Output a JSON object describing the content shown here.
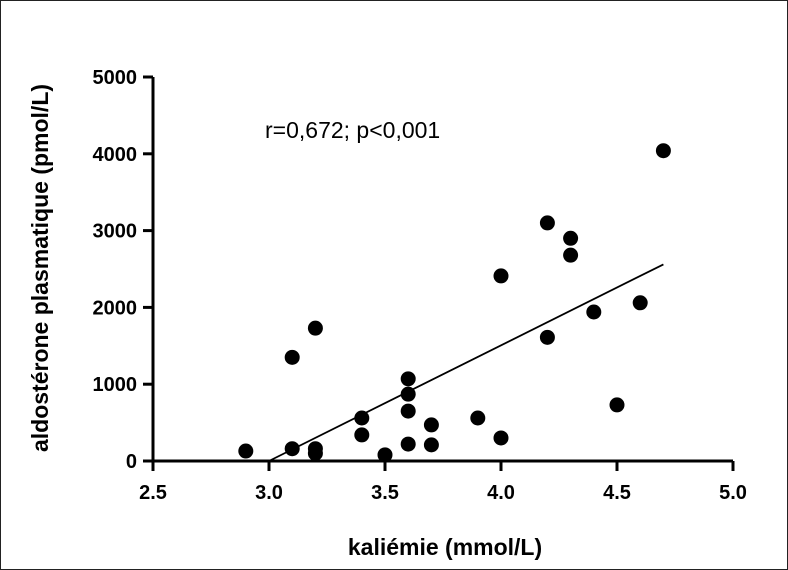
{
  "chart_data": {
    "type": "scatter",
    "xlabel": "kaliémie (mmol/L)",
    "ylabel": "aldostérone plasmatique (pmol/L)",
    "annotation": "r=0,672; p<0,001",
    "xlim": [
      2.5,
      5.0
    ],
    "ylim": [
      0,
      5000
    ],
    "x_ticks": [
      2.5,
      3.0,
      3.5,
      4.0,
      4.5,
      5.0
    ],
    "x_tick_labels": [
      "2.5",
      "3.0",
      "3.5",
      "4.0",
      "4.5",
      "5.0"
    ],
    "y_ticks": [
      0,
      1000,
      2000,
      3000,
      4000,
      5000
    ],
    "y_tick_labels": [
      "0",
      "1000",
      "2000",
      "3000",
      "4000",
      "5000"
    ],
    "grid": false,
    "points": [
      {
        "x": 2.9,
        "y": 130
      },
      {
        "x": 3.1,
        "y": 160
      },
      {
        "x": 3.1,
        "y": 1350
      },
      {
        "x": 3.2,
        "y": 160
      },
      {
        "x": 3.2,
        "y": 100
      },
      {
        "x": 3.2,
        "y": 1730
      },
      {
        "x": 3.4,
        "y": 560
      },
      {
        "x": 3.4,
        "y": 340
      },
      {
        "x": 3.5,
        "y": 80
      },
      {
        "x": 3.6,
        "y": 1070
      },
      {
        "x": 3.6,
        "y": 870
      },
      {
        "x": 3.6,
        "y": 650
      },
      {
        "x": 3.6,
        "y": 220
      },
      {
        "x": 3.7,
        "y": 470
      },
      {
        "x": 3.7,
        "y": 210
      },
      {
        "x": 3.9,
        "y": 560
      },
      {
        "x": 4.0,
        "y": 2410
      },
      {
        "x": 4.0,
        "y": 300
      },
      {
        "x": 4.2,
        "y": 3100
      },
      {
        "x": 4.2,
        "y": 1610
      },
      {
        "x": 4.3,
        "y": 2900
      },
      {
        "x": 4.3,
        "y": 2680
      },
      {
        "x": 4.4,
        "y": 1940
      },
      {
        "x": 4.5,
        "y": 730
      },
      {
        "x": 4.6,
        "y": 2060
      },
      {
        "x": 4.7,
        "y": 4040
      }
    ],
    "regression_line": {
      "x": [
        3.0,
        4.7
      ],
      "y": [
        0,
        2560
      ]
    },
    "colors": {
      "marker": "#000000",
      "axis": "#000000",
      "line": "#000000"
    }
  }
}
